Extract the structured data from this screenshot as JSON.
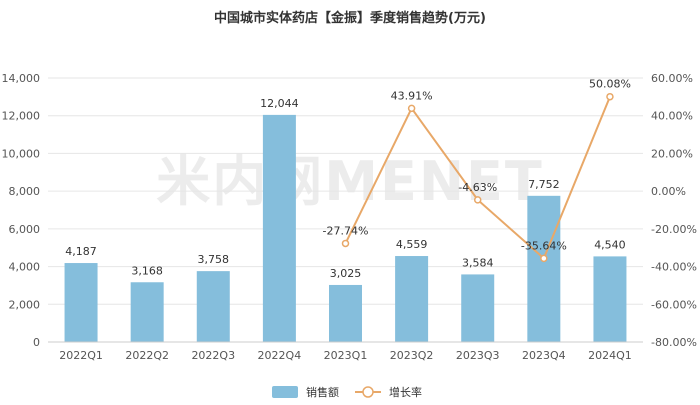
{
  "chart_data": {
    "type": "bar",
    "title": "中国城市实体药店【金振】季度销售趋势(万元)",
    "categories": [
      "2022Q1",
      "2022Q2",
      "2022Q3",
      "2022Q4",
      "2023Q1",
      "2023Q2",
      "2023Q3",
      "2023Q4",
      "2024Q1"
    ],
    "series": [
      {
        "name": "销售额",
        "type": "bar",
        "axis": "left",
        "values": [
          4187,
          3168,
          3758,
          12044,
          3025,
          4559,
          3584,
          7752,
          4540
        ],
        "labels": [
          "4,187",
          "3,168",
          "3,758",
          "12,044",
          "3,025",
          "4,559",
          "3,584",
          "7,752",
          "4,540"
        ]
      },
      {
        "name": "增长率",
        "type": "line",
        "axis": "right",
        "values": [
          null,
          null,
          null,
          null,
          -27.74,
          43.91,
          -4.63,
          -35.64,
          50.08
        ],
        "labels": [
          "",
          "",
          "",
          "",
          "-27.74%",
          "43.91%",
          "-4.63%",
          "-35.64%",
          "50.08%"
        ]
      }
    ],
    "y_left": {
      "ylim": [
        0,
        14000
      ],
      "ticks": [
        0,
        2000,
        4000,
        6000,
        8000,
        10000,
        12000,
        14000
      ],
      "tick_labels": [
        "0",
        "2,000",
        "4,000",
        "6,000",
        "8,000",
        "10,000",
        "12,000",
        "14,000"
      ]
    },
    "y_right": {
      "ylim": [
        -80,
        60
      ],
      "ticks": [
        -80,
        -60,
        -40,
        -20,
        0,
        20,
        40,
        60
      ],
      "tick_labels": [
        "-80.00%",
        "-60.00%",
        "-40.00%",
        "-20.00%",
        "0.00%",
        "20.00%",
        "40.00%",
        "60.00%"
      ]
    },
    "grid": true,
    "legend_position": "bottom-center",
    "colors": {
      "bar": "#85bedc",
      "line": "#e8a868",
      "grid": "#e6e6e6",
      "axis": "#cccccc"
    },
    "watermark": "米内网MENET"
  }
}
